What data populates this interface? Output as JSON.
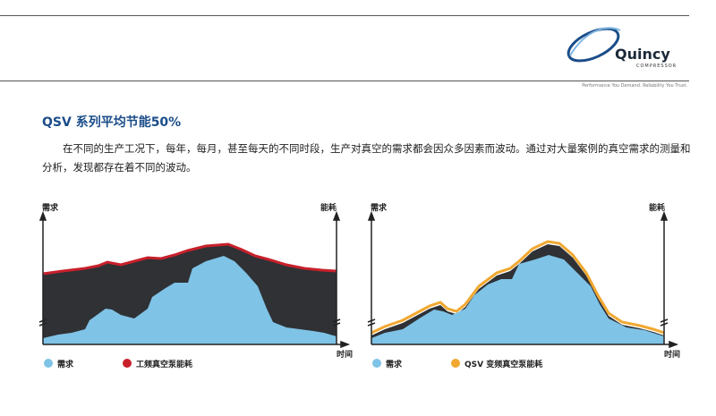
{
  "header": {
    "logo_name": "Quincy",
    "logo_sub": "COMPRESSOR",
    "tagline": "Performance You Demand. Reliability You Trust."
  },
  "section": {
    "title": "QSV 系列平均节能50%",
    "paragraph": "在不同的生产工况下，每年，每月，甚至每天的不同时段，生产对真空的需求都会因众多因素而波动。通过对大量案例的真空需求的测量和分析，发现都存在着不同的波动。"
  },
  "charts": [
    {
      "y_left_label": "需求",
      "y_right_label": "能耗",
      "x_label": "时间",
      "legend": [
        "需求",
        "工频真空泵能耗"
      ]
    },
    {
      "y_left_label": "需求",
      "y_right_label": "能耗",
      "x_label": "时间",
      "legend": [
        "需求",
        "QSV 变频真空泵能耗"
      ]
    }
  ]
}
